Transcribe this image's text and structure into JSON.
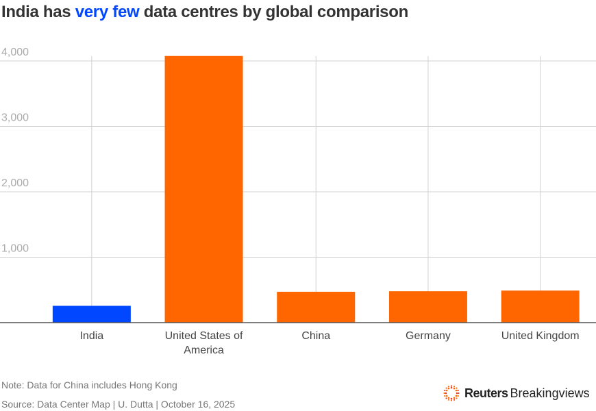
{
  "chart_data": {
    "type": "bar",
    "title_parts": [
      "India has ",
      "very few",
      " data centres by global comparison"
    ],
    "categories": [
      "India",
      "United States of America",
      "China",
      "Germany",
      "United Kingdom"
    ],
    "category_lines": [
      [
        "India"
      ],
      [
        "United States of",
        "America"
      ],
      [
        "China"
      ],
      [
        "Germany"
      ],
      [
        "United Kingdom"
      ]
    ],
    "values": [
      257,
      4076,
      472,
      480,
      490
    ],
    "bar_colors": [
      "#0047ff",
      "#ff6600",
      "#ff6600",
      "#ff6600",
      "#ff6600"
    ],
    "highlight_color": "#0047ff",
    "ylim": [
      0,
      4000
    ],
    "yticks": [
      1000,
      2000,
      3000,
      4000
    ],
    "ytick_labels": [
      "1,000",
      "2,000",
      "3,000",
      "4,000"
    ],
    "grid": true
  },
  "footer": {
    "note": "Note: Data for China includes Hong Kong",
    "source": "Source: Data Center Map | U. Dutta | October 16, 2025",
    "logo_bold": "Reuters",
    "logo_rest": "Breakingviews"
  }
}
